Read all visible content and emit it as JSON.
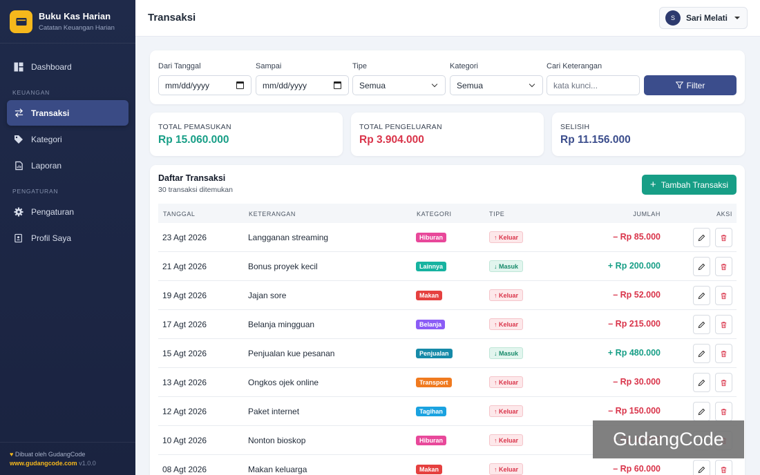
{
  "app": {
    "name": "Buku Kas Harian",
    "subtitle": "Catatan Keuangan Harian"
  },
  "sidebar": {
    "dashboard": "Dashboard",
    "section_keuangan": "KEUANGAN",
    "transaksi": "Transaksi",
    "kategori": "Kategori",
    "laporan": "Laporan",
    "section_pengaturan": "PENGATURAN",
    "pengaturan": "Pengaturan",
    "profil": "Profil Saya",
    "footer_made_by": "Dibuat oleh GudangCode",
    "footer_site": "www.gudangcode.com",
    "footer_version": "v1.0.0"
  },
  "header": {
    "title": "Transaksi",
    "user_initial": "S",
    "user_name": "Sari Melati"
  },
  "filters": {
    "from_label": "Dari Tanggal",
    "from_value": "mm/dd/yyyy",
    "to_label": "Sampai",
    "to_value": "mm/dd/yyyy",
    "type_label": "Tipe",
    "type_value": "Semua",
    "category_label": "Kategori",
    "category_value": "Semua",
    "search_label": "Cari Keterangan",
    "search_placeholder": "kata kunci...",
    "filter_button": "Filter"
  },
  "summary": {
    "income_label": "TOTAL PEMASUKAN",
    "income_value": "Rp 15.060.000",
    "expense_label": "TOTAL PENGELUARAN",
    "expense_value": "Rp 3.904.000",
    "diff_label": "SELISIH",
    "diff_value": "Rp 11.156.000"
  },
  "table": {
    "title": "Daftar Transaksi",
    "count_text": "30 transaksi ditemukan",
    "add_button": "Tambah Transaksi",
    "columns": [
      "TANGGAL",
      "KETERANGAN",
      "KATEGORI",
      "TIPE",
      "JUMLAH",
      "AKSI"
    ],
    "rows": [
      {
        "date": "23 Agt 2026",
        "desc": "Langganan streaming",
        "category": "Hiburan",
        "cat_color": "#e8489a",
        "type": "↑ Keluar",
        "type_kind": "out",
        "amount": "– Rp 85.000"
      },
      {
        "date": "21 Agt 2026",
        "desc": "Bonus proyek kecil",
        "category": "Lainnya",
        "cat_color": "#17b3a0",
        "type": "↓ Masuk",
        "type_kind": "in",
        "amount": "+ Rp 200.000"
      },
      {
        "date": "19 Agt 2026",
        "desc": "Jajan sore",
        "category": "Makan",
        "cat_color": "#e5403f",
        "type": "↑ Keluar",
        "type_kind": "out",
        "amount": "– Rp 52.000"
      },
      {
        "date": "17 Agt 2026",
        "desc": "Belanja mingguan",
        "category": "Belanja",
        "cat_color": "#8b5cf6",
        "type": "↑ Keluar",
        "type_kind": "out",
        "amount": "– Rp 215.000"
      },
      {
        "date": "15 Agt 2026",
        "desc": "Penjualan kue pesanan",
        "category": "Penjualan",
        "cat_color": "#168aa8",
        "type": "↓ Masuk",
        "type_kind": "in",
        "amount": "+ Rp 480.000"
      },
      {
        "date": "13 Agt 2026",
        "desc": "Ongkos ojek online",
        "category": "Transport",
        "cat_color": "#f07a1f",
        "type": "↑ Keluar",
        "type_kind": "out",
        "amount": "– Rp 30.000"
      },
      {
        "date": "12 Agt 2026",
        "desc": "Paket internet",
        "category": "Tagihan",
        "cat_color": "#1aa2e0",
        "type": "↑ Keluar",
        "type_kind": "out",
        "amount": "– Rp 150.000"
      },
      {
        "date": "10 Agt 2026",
        "desc": "Nonton bioskop",
        "category": "Hiburan",
        "cat_color": "#e8489a",
        "type": "↑ Keluar",
        "type_kind": "out",
        "amount": "– Rp 45.000"
      },
      {
        "date": "08 Agt 2026",
        "desc": "Makan keluarga",
        "category": "Makan",
        "cat_color": "#e5403f",
        "type": "↑ Keluar",
        "type_kind": "out",
        "amount": "– Rp 60.000"
      }
    ]
  },
  "colors": {
    "income": "#179e86",
    "expense": "#d9344a",
    "diff": "#3b4d8c"
  },
  "watermark": "GudangCode"
}
